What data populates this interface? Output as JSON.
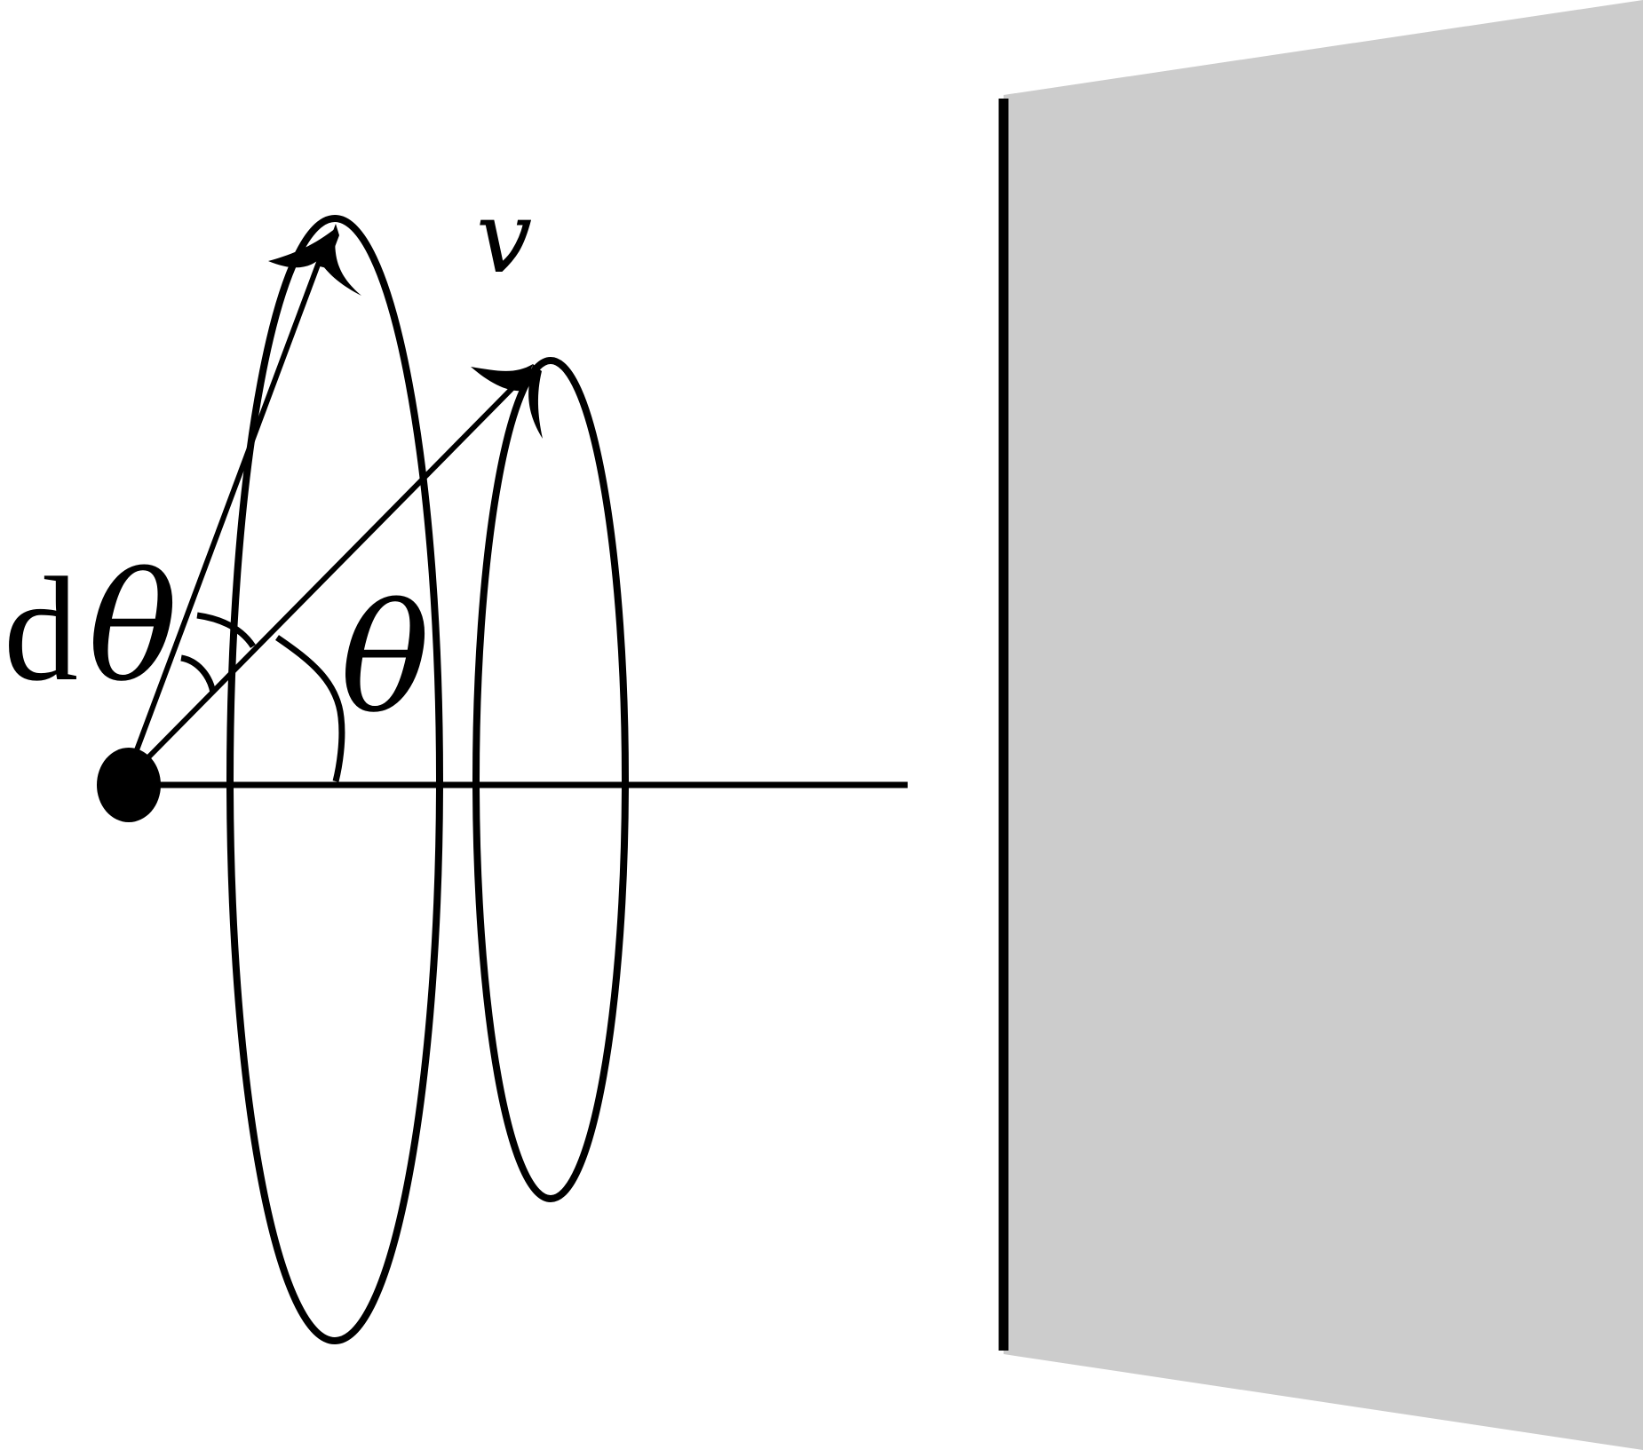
{
  "labels": {
    "velocity": "v",
    "dtheta_d": "d",
    "dtheta_theta": "θ",
    "theta": "θ"
  },
  "colors": {
    "ink": "#000000",
    "wall_fill": "#cccccc",
    "background": "#ffffff"
  },
  "icons": {
    "particle": "filled-circle",
    "arrowhead": "curved-arrowhead"
  }
}
